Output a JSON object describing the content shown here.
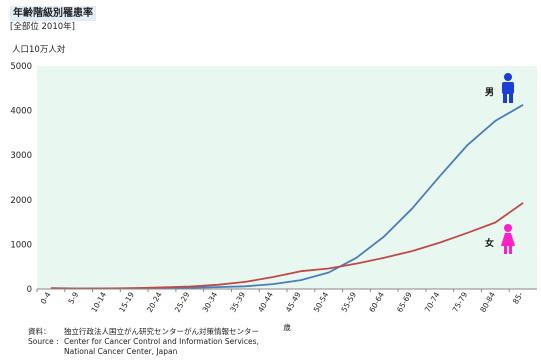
{
  "header": {
    "title": "年齢階級別罹患率",
    "subtitle": "[全部位 2010年]",
    "unit": "人口10万人対"
  },
  "source": {
    "label_jp": "資料：",
    "text_jp": "独立行政法人国立がん研究センターがん対策情報センター",
    "label_en": "Source :",
    "line1_en": "Center for Cancer Control and Information Services,",
    "line2_en": "National Cancer Center, Japan"
  },
  "chart_data": {
    "type": "line",
    "title": "",
    "xlabel": "歳",
    "ylabel": "人口10万人対",
    "ylim": [
      0,
      5000
    ],
    "yticks": [
      0,
      1000,
      2000,
      3000,
      4000,
      5000
    ],
    "grid": false,
    "background": "#e8f7ef",
    "categories": [
      "0-4",
      "5-9",
      "10-14",
      "15-19",
      "20-24",
      "25-29",
      "30-34",
      "35-39",
      "40-44",
      "45-49",
      "50-54",
      "55-59",
      "60-64",
      "65-69",
      "70-74",
      "75-79",
      "80-84",
      "85-"
    ],
    "series": [
      {
        "name": "男",
        "color": "#4a7ebb",
        "icon": "male-figure-icon",
        "icon_color": "#1b3fd6",
        "values": [
          18,
          12,
          14,
          16,
          22,
          30,
          42,
          60,
          110,
          200,
          370,
          700,
          1180,
          1800,
          2530,
          3230,
          3770,
          4130
        ]
      },
      {
        "name": "女",
        "color": "#be4b48",
        "icon": "female-figure-icon",
        "icon_color": "#ff1ec8",
        "values": [
          15,
          10,
          12,
          18,
          35,
          55,
          95,
          160,
          270,
          400,
          460,
          570,
          700,
          850,
          1040,
          1260,
          1490,
          1930
        ]
      }
    ]
  }
}
